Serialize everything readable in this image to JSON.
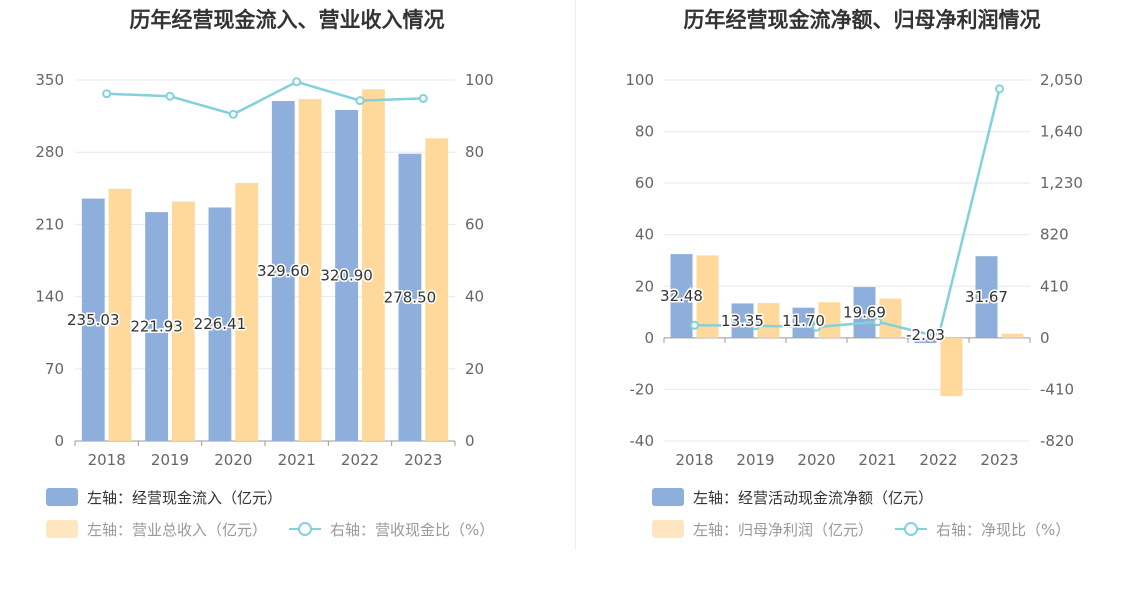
{
  "charts": [
    {
      "title": "历年经营现金流入、营业收入情况",
      "legend": [
        {
          "label": "左轴：经营现金流入（亿元）",
          "type": "bar",
          "color": "#8eaedb"
        },
        {
          "label": "左轴：营业总收入（亿元）",
          "type": "bar",
          "color": "#fed99b"
        },
        {
          "label": "右轴：营收现金比（%）",
          "type": "line",
          "color": "#83d1d9"
        }
      ]
    },
    {
      "title": "历年经营现金流净额、归母净利润情况",
      "legend": [
        {
          "label": "左轴：经营活动现金流净额（亿元）",
          "type": "bar",
          "color": "#8eaedb"
        },
        {
          "label": "左轴：归母净利润（亿元）",
          "type": "bar",
          "color": "#fed99b"
        },
        {
          "label": "右轴：净现比（%）",
          "type": "line",
          "color": "#83d1d9"
        }
      ]
    }
  ],
  "chart_data": [
    {
      "type": "bar",
      "title": "历年经营现金流入、营业收入情况",
      "categories": [
        "2018",
        "2019",
        "2020",
        "2021",
        "2022",
        "2023"
      ],
      "left_axis": {
        "min": 0,
        "max": 350,
        "ticks": [
          "0",
          "70",
          "140",
          "210",
          "280",
          "350"
        ]
      },
      "right_axis": {
        "min": 0,
        "max": 100,
        "ticks": [
          "0",
          "20",
          "40",
          "60",
          "80",
          "100"
        ]
      },
      "series": [
        {
          "name": "左轴：经营现金流入（亿元）",
          "axis": "left",
          "type": "bar",
          "color": "#8eaedb",
          "values": [
            235.03,
            221.93,
            226.41,
            329.6,
            320.9,
            278.5
          ],
          "labels": [
            "235.03",
            "221.93",
            "226.41",
            "329.60",
            "320.90",
            "278.50"
          ]
        },
        {
          "name": "左轴：营业总收入（亿元）",
          "axis": "left",
          "type": "bar",
          "color": "#fed99b",
          "values": [
            244.5,
            232.2,
            250.2,
            331.5,
            341.0,
            293.5
          ]
        },
        {
          "name": "右轴：营收现金比（%）",
          "axis": "right",
          "type": "line",
          "color": "#83d1d9",
          "values": [
            96.2,
            95.5,
            90.5,
            99.5,
            94.3,
            94.9
          ]
        }
      ],
      "grid": true,
      "legend_position": "bottom-left"
    },
    {
      "type": "bar",
      "title": "历年经营现金流净额、归母净利润情况",
      "categories": [
        "2018",
        "2019",
        "2020",
        "2021",
        "2022",
        "2023"
      ],
      "left_axis": {
        "min": -40,
        "max": 100,
        "ticks": [
          "-40",
          "-20",
          "0",
          "20",
          "40",
          "60",
          "80",
          "100"
        ]
      },
      "right_axis": {
        "min": -820,
        "max": 2050,
        "ticks": [
          "-820",
          "-410",
          "0",
          "410",
          "820",
          "1,230",
          "1,640",
          "2,050"
        ]
      },
      "series": [
        {
          "name": "左轴：经营活动现金流净额（亿元）",
          "axis": "left",
          "type": "bar",
          "color": "#8eaedb",
          "values": [
            32.48,
            13.35,
            11.7,
            19.69,
            -2.03,
            31.67
          ],
          "labels": [
            "32.48",
            "13.35",
            "11.70",
            "19.69",
            "-2.03",
            "31.67"
          ]
        },
        {
          "name": "左轴：归母净利润（亿元）",
          "axis": "left",
          "type": "bar",
          "color": "#fed99b",
          "values": [
            32.0,
            13.5,
            13.8,
            15.2,
            -22.6,
            1.6
          ]
        },
        {
          "name": "右轴：净现比（%）",
          "axis": "right",
          "type": "line",
          "color": "#83d1d9",
          "values": [
            100,
            97,
            85,
            128,
            9,
            1980
          ]
        }
      ],
      "grid": true,
      "legend_position": "bottom-left"
    }
  ]
}
